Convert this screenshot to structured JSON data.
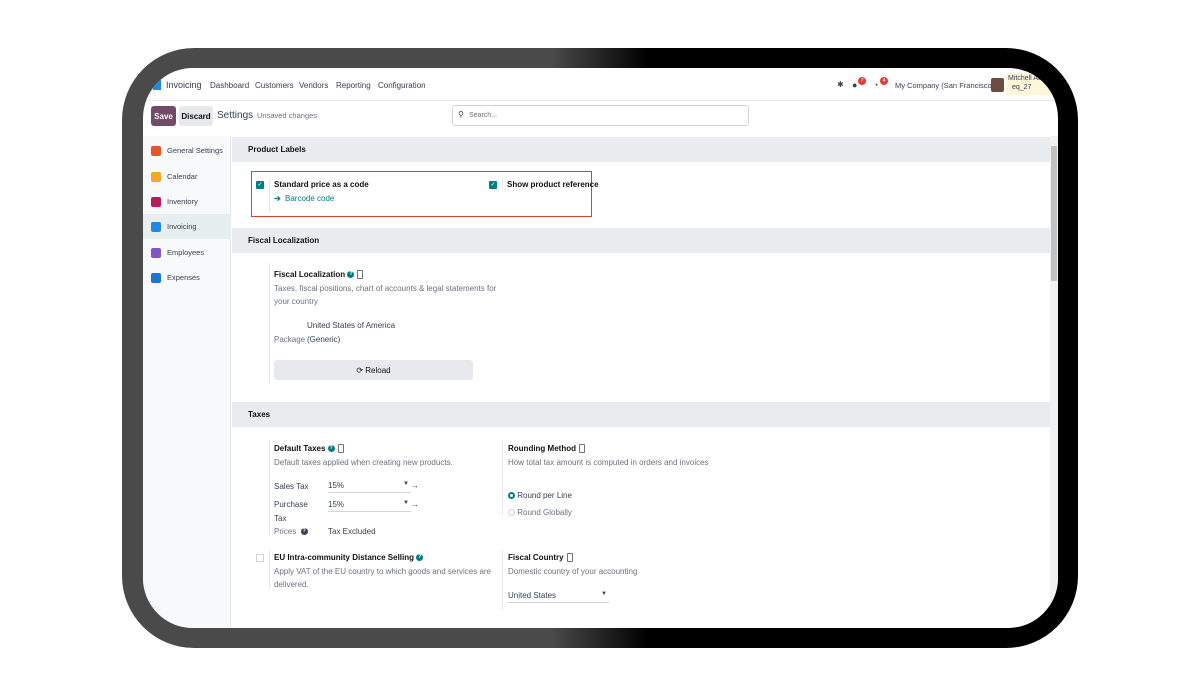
{
  "nav": {
    "app": "Invoicing",
    "menu": [
      "Dashboard",
      "Customers",
      "Vendors",
      "Reporting",
      "Configuration"
    ],
    "messages_badge": "7",
    "activities_badge": "4",
    "company": "My Company (San Francisco)",
    "user": "Mitchell Ad",
    "db": "eq_27"
  },
  "control": {
    "save": "Save",
    "discard": "Discard",
    "title": "Settings",
    "status": "Unsaved changes",
    "search_placeholder": "Search..."
  },
  "sidebar": {
    "items": [
      {
        "label": "General Settings",
        "color": "#e4572e"
      },
      {
        "label": "Calendar",
        "color": "#f5a623"
      },
      {
        "label": "Inventory",
        "color": "#c2185b"
      },
      {
        "label": "Invoicing",
        "color": "#1e88e5",
        "active": true
      },
      {
        "label": "Employees",
        "color": "#7e57c2"
      },
      {
        "label": "Expenses",
        "color": "#1976d2"
      }
    ]
  },
  "product_labels": {
    "header": "Product Labels",
    "standard_price": "Standard price as a code",
    "barcode_link": "Barcode code",
    "show_reference": "Show product reference",
    "standard_checked": true,
    "reference_checked": true
  },
  "fiscal": {
    "header": "Fiscal Localization",
    "title": "Fiscal Localization",
    "desc": "Taxes, fiscal positions, chart of accounts & legal statements for",
    "desc2": "your country",
    "package_label": "Package",
    "package_value": "United States of America",
    "package_value2": "(Generic)",
    "reload": "Reload"
  },
  "taxes": {
    "header": "Taxes",
    "default_title": "Default Taxes",
    "default_desc": "Default taxes applied when creating new products.",
    "sales_label": "Sales Tax",
    "sales_value": "15%",
    "purchase_label": "Purchase",
    "purchase_label2": "Tax",
    "purchase_value": "15%",
    "prices_label": "Prices",
    "prices_value": "Tax Excluded",
    "rounding_title": "Rounding Method",
    "rounding_desc": "How total tax amount is computed in orders and invoices",
    "round_line": "Round per Line",
    "round_global": "Round Globally",
    "round_selected": "Round per Line",
    "eu_title": "EU Intra-community Distance Selling",
    "eu_desc": "Apply VAT of the EU country to which goods and services are",
    "eu_desc2": "delivered.",
    "eu_checked": false,
    "country_title": "Fiscal Country",
    "country_desc": "Domestic country of your accounting",
    "country_value": "United States"
  },
  "colors": {
    "primary": "#714b67",
    "accent": "#017e84",
    "highlight": "#e53935"
  }
}
